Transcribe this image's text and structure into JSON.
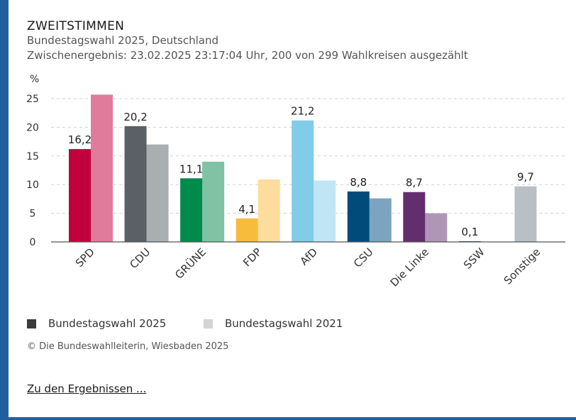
{
  "title": "ZWEITSTIMMEN",
  "subtitle1": "Bundestagswahl 2025, Deutschland",
  "subtitle2": "Zwischenergebnis: 23.02.2025 23:17:04 Uhr, 200 von 299 Wahlkreisen ausgezählt",
  "copyright": "© Die Bundeswahlleiterin, Wiesbaden 2025",
  "link_label": "Zu den Ergebnissen ...",
  "chart_data": {
    "type": "bar",
    "ylabel": "%",
    "ylim": [
      0,
      25
    ],
    "yticks": [
      0,
      5,
      10,
      15,
      20,
      25
    ],
    "grid": true,
    "legend_position": "bottom-left",
    "categories": [
      "SPD",
      "CDU",
      "GRÜNE",
      "FDP",
      "AfD",
      "CSU",
      "Die Linke",
      "SSW",
      "Sonstige"
    ],
    "series": [
      {
        "name": "Bundestagswahl 2025",
        "legend_color": "#3c3c3c",
        "values": [
          16.2,
          20.2,
          11.1,
          4.1,
          21.2,
          8.8,
          8.7,
          0.1,
          9.7
        ],
        "labels": [
          "16,2",
          "20,2",
          "11,1",
          "4,1",
          "21,2",
          "8,8",
          "8,7",
          "0,1",
          "9,7"
        ],
        "colors": [
          "#c0003c",
          "#5a6065",
          "#008a4c",
          "#f8bc3c",
          "#80cce9",
          "#004b7a",
          "#632e6e",
          "#1e3f8f",
          "#b9c0c5"
        ]
      },
      {
        "name": "Bundestagswahl 2021",
        "legend_color": "#d4d4d4",
        "values": [
          25.7,
          17.0,
          14.0,
          10.9,
          10.7,
          7.6,
          5.0,
          null,
          null
        ],
        "colors": [
          "#e07b9c",
          "#a9aeb1",
          "#80c2a3",
          "#fcdd9e",
          "#c0e6f5",
          "#7aa4bf",
          "#af96b6",
          "#8fa0c8",
          "#dce0e3"
        ]
      }
    ]
  }
}
